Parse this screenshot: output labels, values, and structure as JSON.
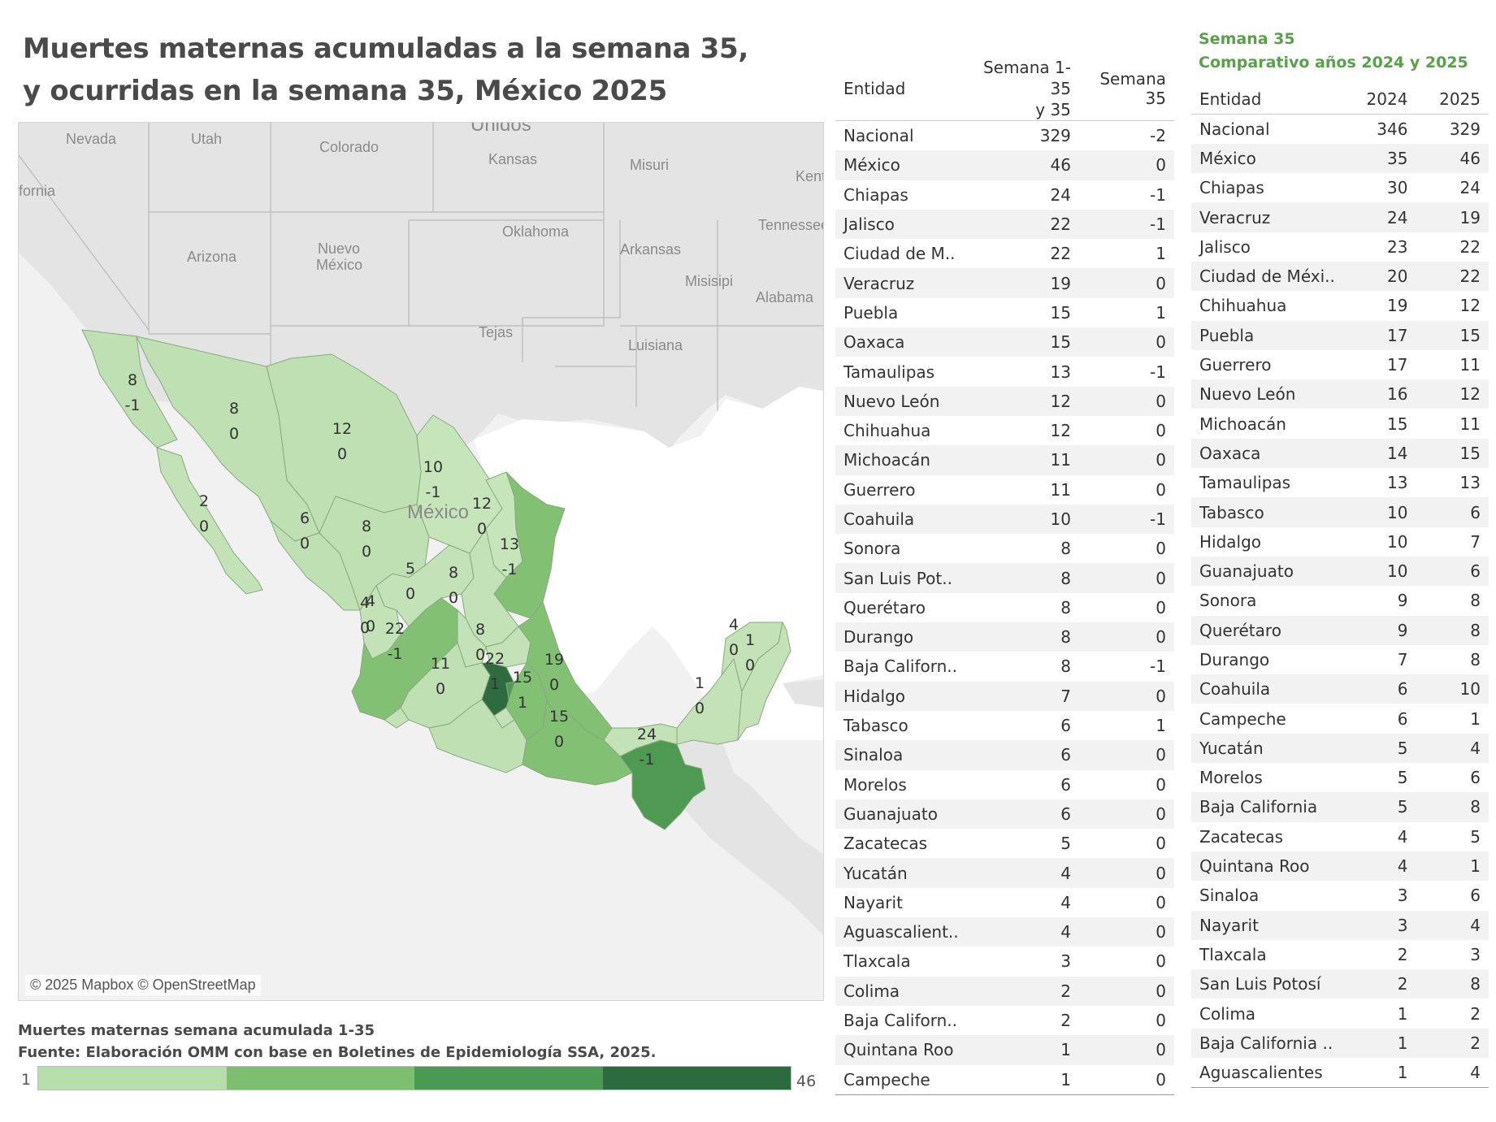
{
  "title_line1": "Muertes maternas acumuladas a la semana 35,",
  "title_line2": "y ocurridas en la semana 35, México 2025",
  "map": {
    "copyright": "© 2025 Mapbox © OpenStreetMap",
    "background_labels": [
      "Nevada",
      "Utah",
      "Colorado",
      "Kansas",
      "Misuri",
      "Kentucky",
      "fornia",
      "Oklahoma",
      "Tennessee",
      "Arizona",
      "Nuevo",
      "México",
      "Arkansas",
      "Misisipi",
      "Alabama",
      "Tejas",
      "Luisiana",
      "Unidos",
      "México"
    ],
    "state_values": [
      {
        "value": "8",
        "change": "-1"
      },
      {
        "value": "8",
        "change": "0"
      },
      {
        "value": "12",
        "change": "0"
      },
      {
        "value": "10",
        "change": "-1"
      },
      {
        "value": "12",
        "change": "0"
      },
      {
        "value": "2",
        "change": "0"
      },
      {
        "value": "6",
        "change": "0"
      },
      {
        "value": "8",
        "change": "0"
      },
      {
        "value": "13",
        "change": "-1"
      },
      {
        "value": "5",
        "change": "0"
      },
      {
        "value": "4",
        "change": "0"
      },
      {
        "value": "8",
        "change": "0"
      },
      {
        "value": "4",
        "change": "0"
      },
      {
        "value": "22",
        "change": "-1"
      },
      {
        "value": "8",
        "change": "0"
      },
      {
        "value": "11",
        "change": "0"
      },
      {
        "value": "22",
        "change": "1"
      },
      {
        "value": "15",
        "change": "1"
      },
      {
        "value": "19",
        "change": "0"
      },
      {
        "value": "15",
        "change": "0"
      },
      {
        "value": "24",
        "change": "-1"
      },
      {
        "value": "4",
        "change": "0"
      },
      {
        "value": "1",
        "change": "0"
      },
      {
        "value": "1",
        "change": "0"
      }
    ],
    "colors": {
      "light": "#bfe0b2",
      "mid": "#7cbe6d",
      "dark": "#4f9a53",
      "darkest": "#2e6b3f",
      "land": "#e3e3e3",
      "water": "#ffffff"
    }
  },
  "legend": {
    "title": "Muertes maternas semana acumulada 1-35",
    "source": "Fuente: Elaboración OMM con base en Boletines de Epidemiología SSA, 2025.",
    "min": "1",
    "max": "46",
    "colors": [
      "#b5deaa",
      "#7cbf6e",
      "#4a9a54",
      "#2b6b3d"
    ]
  },
  "table1": {
    "headers": [
      "Entidad",
      "Semana 1-35\ny 35",
      "Semana 35"
    ],
    "rows": [
      [
        "Nacional",
        "329",
        "-2"
      ],
      [
        "México",
        "46",
        "0"
      ],
      [
        "Chiapas",
        "24",
        "-1"
      ],
      [
        "Jalisco",
        "22",
        "-1"
      ],
      [
        "Ciudad de M..",
        "22",
        "1"
      ],
      [
        "Veracruz",
        "19",
        "0"
      ],
      [
        "Puebla",
        "15",
        "1"
      ],
      [
        "Oaxaca",
        "15",
        "0"
      ],
      [
        "Tamaulipas",
        "13",
        "-1"
      ],
      [
        "Nuevo León",
        "12",
        "0"
      ],
      [
        "Chihuahua",
        "12",
        "0"
      ],
      [
        "Michoacán",
        "11",
        "0"
      ],
      [
        "Guerrero",
        "11",
        "0"
      ],
      [
        "Coahuila",
        "10",
        "-1"
      ],
      [
        "Sonora",
        "8",
        "0"
      ],
      [
        "San Luis Pot..",
        "8",
        "0"
      ],
      [
        "Querétaro",
        "8",
        "0"
      ],
      [
        "Durango",
        "8",
        "0"
      ],
      [
        "Baja Californ..",
        "8",
        "-1"
      ],
      [
        "Hidalgo",
        "7",
        "0"
      ],
      [
        "Tabasco",
        "6",
        "1"
      ],
      [
        "Sinaloa",
        "6",
        "0"
      ],
      [
        "Morelos",
        "6",
        "0"
      ],
      [
        "Guanajuato",
        "6",
        "0"
      ],
      [
        "Zacatecas",
        "5",
        "0"
      ],
      [
        "Yucatán",
        "4",
        "0"
      ],
      [
        "Nayarit",
        "4",
        "0"
      ],
      [
        "Aguascalient..",
        "4",
        "0"
      ],
      [
        "Tlaxcala",
        "3",
        "0"
      ],
      [
        "Colima",
        "2",
        "0"
      ],
      [
        "Baja Californ..",
        "2",
        "0"
      ],
      [
        "Quintana Roo",
        "1",
        "0"
      ],
      [
        "Campeche",
        "1",
        "0"
      ]
    ]
  },
  "table2": {
    "title_line1": "Semana 35",
    "title_line2": "Comparativo años 2024 y 2025",
    "headers": [
      "Entidad",
      "2024",
      "2025"
    ],
    "rows": [
      [
        "Nacional",
        "346",
        "329"
      ],
      [
        "México",
        "35",
        "46"
      ],
      [
        "Chiapas",
        "30",
        "24"
      ],
      [
        "Veracruz",
        "24",
        "19"
      ],
      [
        "Jalisco",
        "23",
        "22"
      ],
      [
        "Ciudad de Méxi..",
        "20",
        "22"
      ],
      [
        "Chihuahua",
        "19",
        "12"
      ],
      [
        "Puebla",
        "17",
        "15"
      ],
      [
        "Guerrero",
        "17",
        "11"
      ],
      [
        "Nuevo León",
        "16",
        "12"
      ],
      [
        "Michoacán",
        "15",
        "11"
      ],
      [
        "Oaxaca",
        "14",
        "15"
      ],
      [
        "Tamaulipas",
        "13",
        "13"
      ],
      [
        "Tabasco",
        "10",
        "6"
      ],
      [
        "Hidalgo",
        "10",
        "7"
      ],
      [
        "Guanajuato",
        "10",
        "6"
      ],
      [
        "Sonora",
        "9",
        "8"
      ],
      [
        "Querétaro",
        "9",
        "8"
      ],
      [
        "Durango",
        "7",
        "8"
      ],
      [
        "Coahuila",
        "6",
        "10"
      ],
      [
        "Campeche",
        "6",
        "1"
      ],
      [
        "Yucatán",
        "5",
        "4"
      ],
      [
        "Morelos",
        "5",
        "6"
      ],
      [
        "Baja California",
        "5",
        "8"
      ],
      [
        "Zacatecas",
        "4",
        "5"
      ],
      [
        "Quintana Roo",
        "4",
        "1"
      ],
      [
        "Sinaloa",
        "3",
        "6"
      ],
      [
        "Nayarit",
        "3",
        "4"
      ],
      [
        "Tlaxcala",
        "2",
        "3"
      ],
      [
        "San Luis Potosí",
        "2",
        "8"
      ],
      [
        "Colima",
        "1",
        "2"
      ],
      [
        "Baja California ..",
        "1",
        "2"
      ],
      [
        "Aguascalientes",
        "1",
        "4"
      ]
    ]
  }
}
